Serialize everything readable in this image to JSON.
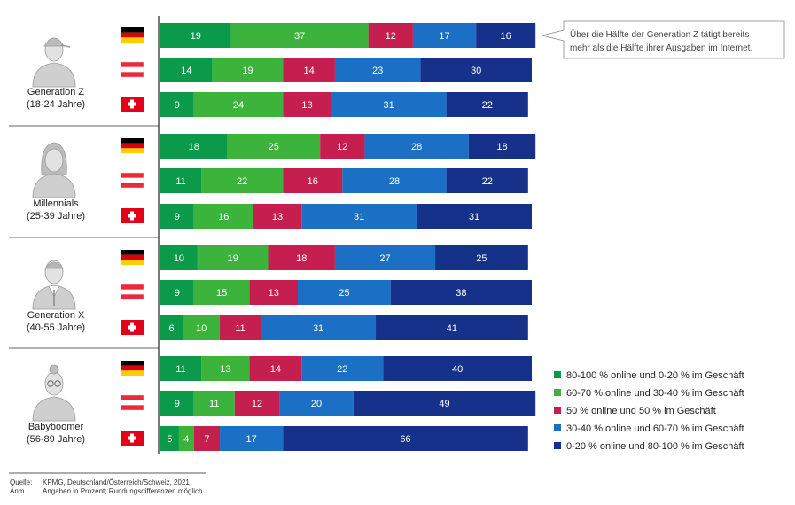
{
  "chart_data": {
    "type": "bar",
    "orientation": "horizontal",
    "stacked": true,
    "xlim": [
      0,
      100
    ],
    "legend_position": "bottom-right",
    "series": [
      {
        "name": "80-100 % online und 0-20 % im Geschäft",
        "color": "#0b9a4a"
      },
      {
        "name": "60-70 % online und 30-40 % im Geschäft",
        "color": "#3cb43c"
      },
      {
        "name": "50 % online und 50 % im Geschäft",
        "color": "#c41f4e"
      },
      {
        "name": "30-40 % online und 60-70 % im Geschäft",
        "color": "#1b6fc4"
      },
      {
        "name": "0-20 % online und 80-100 % im Geschäft",
        "color": "#15318a"
      }
    ],
    "groups": [
      {
        "label_line1": "Generation Z",
        "label_line2": "(18-24 Jahre)",
        "icon": "person-cap-icon",
        "rows": [
          {
            "country": "Deutschland",
            "flag": "germany-flag",
            "values": [
              19,
              37,
              12,
              17,
              16
            ]
          },
          {
            "country": "Österreich",
            "flag": "austria-flag",
            "values": [
              14,
              19,
              14,
              23,
              30
            ]
          },
          {
            "country": "Schweiz",
            "flag": "switzerland-flag",
            "values": [
              9,
              24,
              13,
              31,
              22
            ]
          }
        ]
      },
      {
        "label_line1": "Millennials",
        "label_line2": "(25-39 Jahre)",
        "icon": "person-longhair-icon",
        "rows": [
          {
            "country": "Deutschland",
            "flag": "germany-flag",
            "values": [
              18,
              25,
              12,
              28,
              18
            ]
          },
          {
            "country": "Österreich",
            "flag": "austria-flag",
            "values": [
              11,
              22,
              16,
              28,
              22
            ]
          },
          {
            "country": "Schweiz",
            "flag": "switzerland-flag",
            "values": [
              9,
              16,
              13,
              31,
              31
            ]
          }
        ]
      },
      {
        "label_line1": "Generation X",
        "label_line2": "(40-55 Jahre)",
        "icon": "person-suit-icon",
        "rows": [
          {
            "country": "Deutschland",
            "flag": "germany-flag",
            "values": [
              10,
              19,
              18,
              27,
              25
            ]
          },
          {
            "country": "Österreich",
            "flag": "austria-flag",
            "values": [
              9,
              15,
              13,
              25,
              38
            ]
          },
          {
            "country": "Schweiz",
            "flag": "switzerland-flag",
            "values": [
              6,
              10,
              11,
              31,
              41
            ]
          }
        ]
      },
      {
        "label_line1": "Babyboomer",
        "label_line2": "(56-89 Jahre)",
        "icon": "person-glasses-icon",
        "rows": [
          {
            "country": "Deutschland",
            "flag": "germany-flag",
            "values": [
              11,
              13,
              14,
              22,
              40
            ]
          },
          {
            "country": "Österreich",
            "flag": "austria-flag",
            "values": [
              9,
              11,
              12,
              20,
              49
            ]
          },
          {
            "country": "Schweiz",
            "flag": "switzerland-flag",
            "values": [
              5,
              4,
              7,
              17,
              66
            ]
          }
        ]
      }
    ],
    "callout": {
      "line1": "Über die Hälfte der Generation Z tätigt bereits",
      "line2": "mehr als die Hälfte ihrer Ausgaben im Internet."
    }
  },
  "footer": {
    "source_label": "Quelle:",
    "source_text": "KPMG, Deutschland/Österreich/Schweiz, 2021",
    "note_label": "Anm.:",
    "note_text": "Angaben in Prozent; Rundungsdifferenzen möglich"
  }
}
